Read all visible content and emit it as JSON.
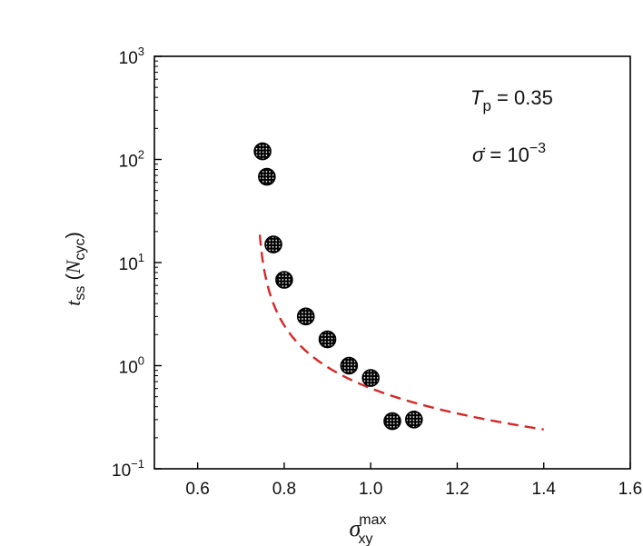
{
  "chart_data": {
    "type": "scatter",
    "x_ticks": [
      "0.6",
      "0.8",
      "1.0",
      "1.2",
      "1.4",
      "1.6"
    ],
    "y_ticks": [
      {
        "base": "10",
        "exp": "3"
      },
      {
        "base": "10",
        "exp": "2"
      },
      {
        "base": "10",
        "exp": "1"
      },
      {
        "base": "10",
        "exp": "0"
      },
      {
        "base": "10",
        "exp": "−1"
      }
    ],
    "xlim": [
      0.5,
      1.6
    ],
    "ylim": [
      0.1,
      1000
    ],
    "y_scale": "log",
    "grid": false,
    "xlabel": {
      "symbol": "σ",
      "sup": "max",
      "sub": "xy"
    },
    "ylabel": {
      "t": "t",
      "t_sub": "ss",
      "open": " (",
      "n": "N",
      "n_sub": "cyc",
      "close": ")"
    },
    "annotation_1": {
      "symbol": "T",
      "sub": "p",
      "rest": " = 0.35"
    },
    "annotation_2": {
      "symbol": "σ̇",
      "rest": " = 10",
      "sup": "−3"
    },
    "series": [
      {
        "marker": "circle-dotted",
        "color": "#000000",
        "x": [
          0.75,
          0.76,
          0.775,
          0.8,
          0.85,
          0.9,
          0.95,
          1.0,
          1.05,
          1.1
        ],
        "y": [
          120,
          68,
          15,
          6.8,
          3.0,
          1.8,
          1.0,
          0.76,
          0.29,
          0.3
        ]
      },
      {
        "type": "line",
        "style": "dashed",
        "color": "#d62728",
        "fit": {
          "A": 0.16,
          "x0": 0.735,
          "p": 1.0,
          "x_start": 0.7436,
          "x_end": 1.4
        }
      }
    ]
  }
}
